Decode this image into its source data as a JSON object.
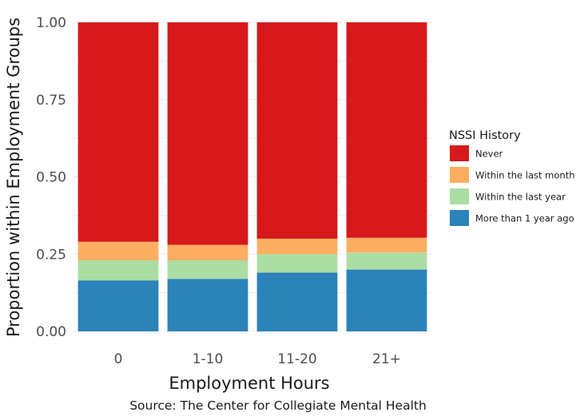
{
  "chart_data": {
    "type": "bar",
    "stacked": true,
    "categories": [
      "0",
      "1-10",
      "11-20",
      "21+"
    ],
    "series": [
      {
        "name": "More than 1 year ago",
        "color": "#2b83ba",
        "values": [
          0.165,
          0.17,
          0.19,
          0.2
        ]
      },
      {
        "name": "Within the last year",
        "color": "#abdda4",
        "values": [
          0.065,
          0.06,
          0.06,
          0.055
        ]
      },
      {
        "name": "Within the last month",
        "color": "#fdae61",
        "values": [
          0.06,
          0.05,
          0.05,
          0.048
        ]
      },
      {
        "name": "Never",
        "color": "#d7191c",
        "values": [
          0.71,
          0.72,
          0.7,
          0.697
        ]
      }
    ],
    "xlabel": "Employment Hours",
    "ylabel": "Proportion within Employment Groups",
    "ylim": [
      0,
      1
    ],
    "yticks": [
      "0.00",
      "0.25",
      "0.50",
      "0.75",
      "1.00"
    ],
    "legend": {
      "title": "NSSI History",
      "placement": "right",
      "order": [
        "Never",
        "Within the last month",
        "Within the last year",
        "More than 1 year ago"
      ]
    },
    "caption": "Source: The Center for Collegiate Mental Health",
    "grid": true
  }
}
